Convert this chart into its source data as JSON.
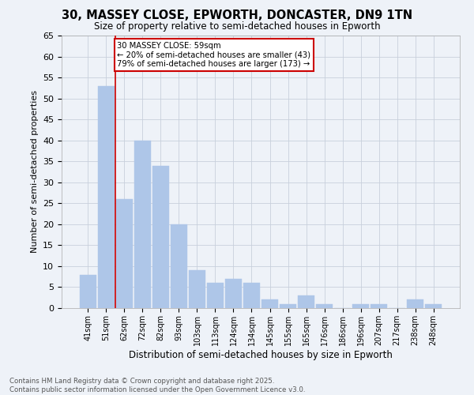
{
  "title": "30, MASSEY CLOSE, EPWORTH, DONCASTER, DN9 1TN",
  "subtitle": "Size of property relative to semi-detached houses in Epworth",
  "xlabel": "Distribution of semi-detached houses by size in Epworth",
  "ylabel": "Number of semi-detached properties",
  "categories": [
    "41sqm",
    "51sqm",
    "62sqm",
    "72sqm",
    "82sqm",
    "93sqm",
    "103sqm",
    "113sqm",
    "124sqm",
    "134sqm",
    "145sqm",
    "155sqm",
    "165sqm",
    "176sqm",
    "186sqm",
    "196sqm",
    "207sqm",
    "217sqm",
    "238sqm",
    "248sqm"
  ],
  "values": [
    8,
    53,
    26,
    40,
    34,
    20,
    9,
    6,
    7,
    6,
    2,
    1,
    3,
    1,
    0,
    1,
    1,
    0,
    2,
    1
  ],
  "bar_color": "#aec6e8",
  "bar_edge_color": "#aec6e8",
  "grid_color": "#c8d0dc",
  "background_color": "#eef2f8",
  "annotation_text": "30 MASSEY CLOSE: 59sqm\n← 20% of semi-detached houses are smaller (43)\n79% of semi-detached houses are larger (173) →",
  "annotation_box_color": "#ffffff",
  "annotation_border_color": "#cc0000",
  "redline_x": 2,
  "ylim": [
    0,
    65
  ],
  "yticks": [
    0,
    5,
    10,
    15,
    20,
    25,
    30,
    35,
    40,
    45,
    50,
    55,
    60,
    65
  ],
  "footer_line1": "Contains HM Land Registry data © Crown copyright and database right 2025.",
  "footer_line2": "Contains public sector information licensed under the Open Government Licence v3.0."
}
